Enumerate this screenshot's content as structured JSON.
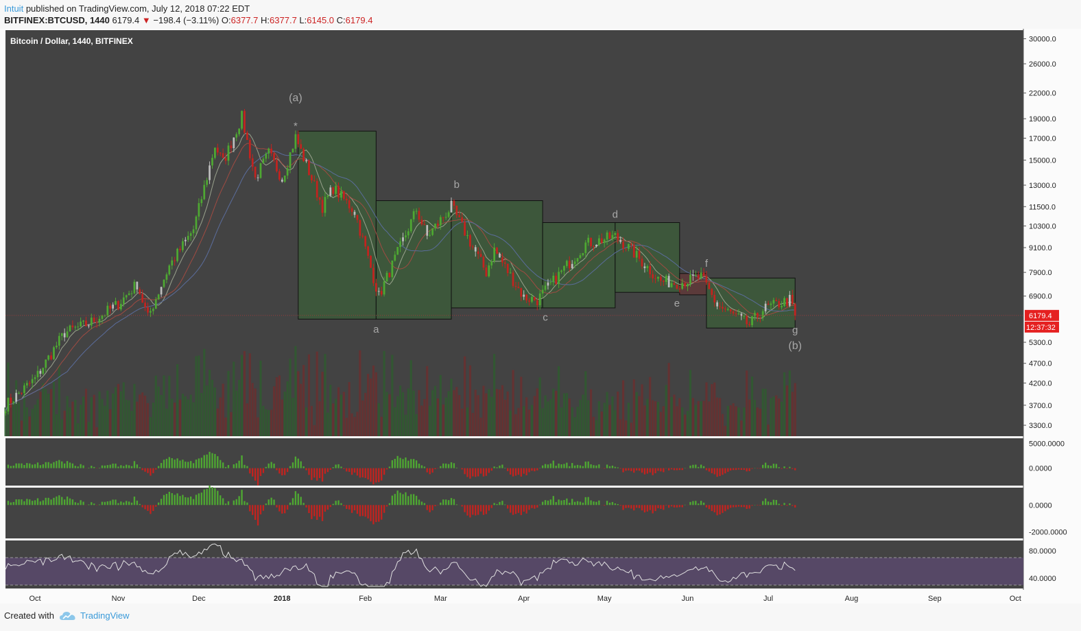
{
  "header": {
    "author": "Intuit",
    "published_text": "published on TradingView.com, July 12, 2018 07:22 EDT",
    "symbol": "BITFINEX:BTCUSD, 1440",
    "last": "6179.4",
    "arrow": "▼",
    "change": "−198.4 (−3.11%)",
    "o_label": "O:",
    "o_val": "6377.7",
    "h_label": "H:",
    "h_val": "6377.7",
    "l_label": "L:",
    "l_val": "6145.0",
    "c_label": "C:",
    "c_val": "6179.4"
  },
  "footer": {
    "created_with": "Created with",
    "brand": "TradingView"
  },
  "colors": {
    "pane_bg": "#434343",
    "up": "#4ea832",
    "down": "#c3231f",
    "neutral": "#bdbdbd",
    "box_fill": "#3d5a3b",
    "box_fill_red": "#5e3a3a",
    "rsi_band": "#5b4a6f",
    "ma_fast": "#9aa28d",
    "ma_mid": "#a04b42",
    "ma_slow": "#5b6d9c",
    "price_line": "#9c3b3b",
    "badge": "#e52020",
    "wave_label": "#a8a8a8"
  },
  "chart_data": {
    "type": "candlestick",
    "title": "Bitcoin / Dollar, 1440, BITFINEX",
    "x_axis": {
      "scale": "time",
      "range": [
        "2017-09-20",
        "2018-10-04"
      ],
      "tick_labels": [
        "Oct",
        "Nov",
        "Dec",
        "2018",
        "Feb",
        "Mar",
        "Apr",
        "May",
        "Jun",
        "Jul",
        "Aug",
        "Sep",
        "Oct"
      ],
      "tick_dates": [
        "2017-10-01",
        "2017-11-01",
        "2017-12-01",
        "2018-01-01",
        "2018-02-01",
        "2018-03-01",
        "2018-04-01",
        "2018-05-01",
        "2018-06-01",
        "2018-07-01",
        "2018-08-01",
        "2018-09-01",
        "2018-10-01"
      ]
    },
    "y_axis": {
      "scale": "log",
      "range": [
        3100,
        31500
      ],
      "tick_labels": [
        "30000.0",
        "26000.0",
        "22000.0",
        "19000.0",
        "17000.0",
        "15000.0",
        "13000.0",
        "11500.0",
        "10300.0",
        "9100.0",
        "7900.0",
        "6900.0",
        "6179.4",
        "5300.0",
        "4700.0",
        "4200.0",
        "3700.0",
        "3300.0"
      ],
      "tick_values": [
        30000,
        26000,
        22000,
        19000,
        17000,
        15000,
        13000,
        11500,
        10300,
        9100,
        7900,
        6900,
        5300,
        4700,
        4200,
        3700,
        3300
      ]
    },
    "last_price": {
      "value": 6179.4,
      "label": "6179.4",
      "countdown": "12:37:32"
    },
    "price_path": {
      "dates": [
        "2017-09-20",
        "2017-10-01",
        "2017-10-12",
        "2017-10-21",
        "2017-11-01",
        "2017-11-08",
        "2017-11-12",
        "2017-11-20",
        "2017-11-29",
        "2017-12-07",
        "2017-12-10",
        "2017-12-17",
        "2017-12-22",
        "2017-12-27",
        "2018-01-01",
        "2018-01-06",
        "2018-01-16",
        "2018-01-20",
        "2018-01-28",
        "2018-02-06",
        "2018-02-20",
        "2018-02-24",
        "2018-03-05",
        "2018-03-18",
        "2018-03-21",
        "2018-04-01",
        "2018-04-06",
        "2018-04-24",
        "2018-05-05",
        "2018-05-10",
        "2018-05-22",
        "2018-05-29",
        "2018-06-06",
        "2018-06-12",
        "2018-06-24",
        "2018-06-29",
        "2018-07-09",
        "2018-07-11"
      ],
      "close": [
        3700,
        4300,
        5600,
        5900,
        6600,
        7400,
        6100,
        8200,
        10100,
        16300,
        14800,
        19200,
        13500,
        15600,
        13500,
        17100,
        11500,
        12800,
        11200,
        6900,
        11300,
        9700,
        11500,
        7900,
        9000,
        6850,
        6750,
        9300,
        9700,
        9100,
        7500,
        7450,
        7700,
        6550,
        5850,
        6400,
        6750,
        6179.4
      ]
    },
    "wave_boxes": [
      {
        "start": "2018-01-07",
        "end": "2018-02-05",
        "high": 17700,
        "low": 6050,
        "color": "green"
      },
      {
        "start": "2018-02-05",
        "end": "2018-03-05",
        "high": 11900,
        "low": 6050,
        "color": "green"
      },
      {
        "start": "2018-03-05",
        "end": "2018-04-08",
        "high": 11900,
        "low": 6450,
        "color": "green"
      },
      {
        "start": "2018-04-08",
        "end": "2018-05-05",
        "high": 10500,
        "low": 6450,
        "color": "green"
      },
      {
        "start": "2018-05-05",
        "end": "2018-05-29",
        "high": 10500,
        "low": 7050,
        "color": "green"
      },
      {
        "start": "2018-05-29",
        "end": "2018-06-08",
        "high": 7850,
        "low": 6950,
        "color": "red"
      },
      {
        "start": "2018-06-08",
        "end": "2018-07-11",
        "high": 7650,
        "low": 5750,
        "color": "green"
      }
    ],
    "wave_labels": [
      {
        "text": "(a)",
        "date": "2018-01-06",
        "price": 21000
      },
      {
        "text": "*",
        "date": "2018-01-06",
        "price": 17900
      },
      {
        "text": "a",
        "date": "2018-02-05",
        "price": 5600
      },
      {
        "text": "b",
        "date": "2018-03-07",
        "price": 12800
      },
      {
        "text": "c",
        "date": "2018-04-09",
        "price": 6000
      },
      {
        "text": "d",
        "date": "2018-05-05",
        "price": 10800
      },
      {
        "text": "e",
        "date": "2018-05-28",
        "price": 6500
      },
      {
        "text": "f",
        "date": "2018-06-08",
        "price": 8150
      },
      {
        "text": "g",
        "date": "2018-07-11",
        "price": 5580
      },
      {
        "text": "(b)",
        "date": "2018-07-11",
        "price": 5100
      }
    ],
    "indicator1": {
      "tick_labels": [
        "5000.0000",
        "0.0000"
      ],
      "tick_values": [
        5000,
        0
      ],
      "range": [
        -3500,
        6000
      ]
    },
    "indicator2": {
      "tick_labels": [
        "0.0000",
        "-2000.0000"
      ],
      "tick_values": [
        0,
        -2000
      ],
      "range": [
        -2500,
        1300
      ]
    },
    "rsi": {
      "tick_labels": [
        "80.0000",
        "40.0000"
      ],
      "tick_values": [
        80,
        40
      ],
      "range": [
        25,
        95
      ],
      "band": [
        70,
        30
      ]
    }
  }
}
